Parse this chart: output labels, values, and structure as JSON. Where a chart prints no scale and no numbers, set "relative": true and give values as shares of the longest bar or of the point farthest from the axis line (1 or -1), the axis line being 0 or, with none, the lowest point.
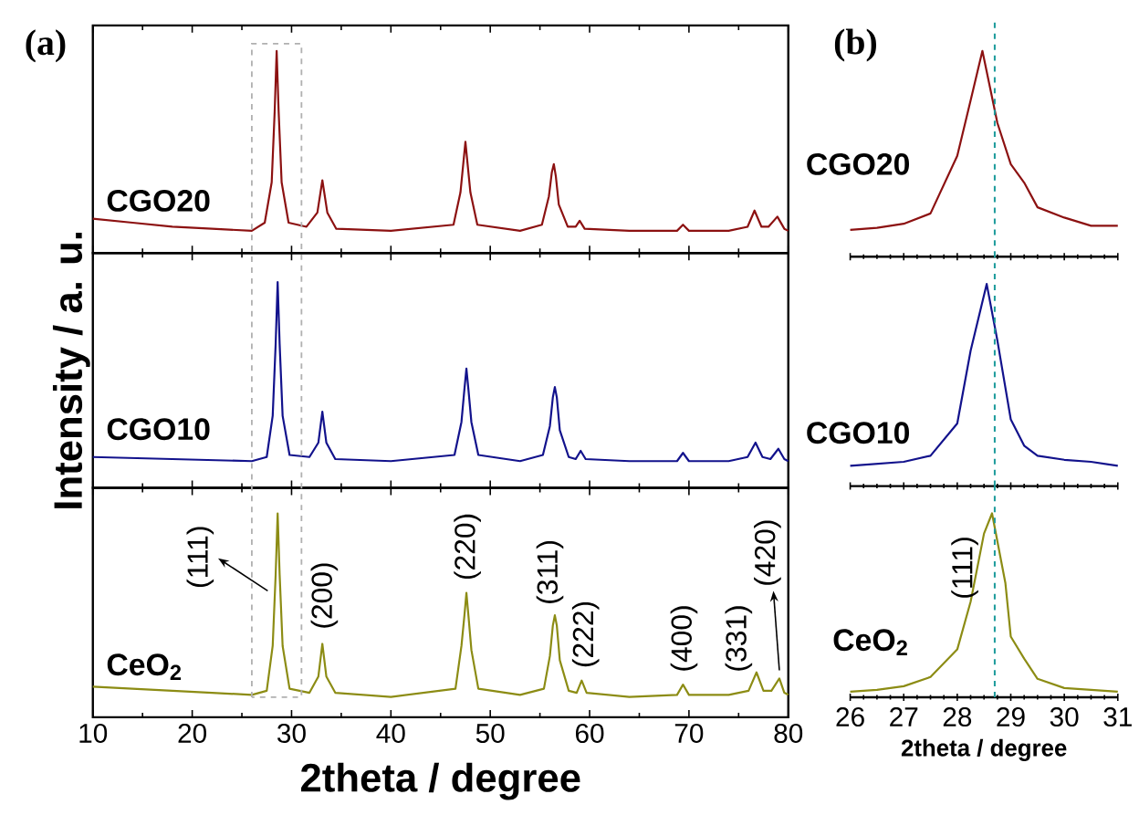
{
  "chart_data": [
    {
      "type": "line",
      "relative": true,
      "xlim": [
        10,
        80
      ],
      "xticks": [
        10,
        20,
        30,
        40,
        50,
        60,
        70,
        80
      ],
      "tick_labels": false,
      "annotations": [
        "(a)"
      ],
      "x": [
        10,
        14,
        18,
        22,
        26,
        27.3,
        28.0,
        28.3,
        28.5,
        28.7,
        29.0,
        29.7,
        31.5,
        32.6,
        33.1,
        33.6,
        34.5,
        40,
        46.3,
        47.0,
        47.3,
        47.5,
        47.7,
        48.0,
        48.7,
        53,
        55.2,
        55.9,
        56.2,
        56.4,
        56.6,
        56.9,
        57.8,
        58.6,
        59.0,
        59.5,
        64,
        68.8,
        69.4,
        70,
        74,
        75.9,
        76.6,
        77.3,
        78,
        78.9,
        79.6,
        80
      ],
      "series": [
        {
          "name": "CGO20",
          "color": "#8c1111",
          "values": [
            0.17,
            0.15,
            0.13,
            0.12,
            0.11,
            0.15,
            0.35,
            0.7,
            1.0,
            0.7,
            0.35,
            0.15,
            0.13,
            0.2,
            0.36,
            0.2,
            0.12,
            0.11,
            0.14,
            0.3,
            0.45,
            0.55,
            0.45,
            0.3,
            0.14,
            0.11,
            0.14,
            0.28,
            0.4,
            0.44,
            0.38,
            0.24,
            0.13,
            0.13,
            0.16,
            0.12,
            0.11,
            0.11,
            0.14,
            0.11,
            0.11,
            0.13,
            0.21,
            0.13,
            0.13,
            0.18,
            0.12,
            0.11
          ]
        }
      ]
    },
    {
      "type": "line",
      "relative": true,
      "xlim": [
        10,
        80
      ],
      "xticks": [
        10,
        20,
        30,
        40,
        50,
        60,
        70,
        80
      ],
      "tick_labels": false,
      "ylabel": "Intensity / a. u.",
      "x": [
        10,
        18,
        26,
        27.5,
        28.1,
        28.4,
        28.6,
        28.8,
        29.1,
        29.8,
        31.8,
        32.7,
        33.1,
        33.5,
        34.4,
        40,
        46.4,
        47.1,
        47.4,
        47.6,
        47.8,
        48.1,
        48.8,
        53,
        55.3,
        56.0,
        56.3,
        56.5,
        56.7,
        57.0,
        57.9,
        58.6,
        59.1,
        59.6,
        64,
        68.8,
        69.4,
        70,
        74,
        75.9,
        76.7,
        77.4,
        78.2,
        79.0,
        79.6,
        80
      ],
      "series": [
        {
          "name": "CGO10",
          "color": "#12128c",
          "values": [
            0.15,
            0.14,
            0.13,
            0.15,
            0.35,
            0.7,
            1.0,
            0.7,
            0.35,
            0.16,
            0.15,
            0.22,
            0.37,
            0.22,
            0.14,
            0.13,
            0.16,
            0.32,
            0.48,
            0.58,
            0.48,
            0.32,
            0.16,
            0.13,
            0.16,
            0.3,
            0.44,
            0.49,
            0.44,
            0.28,
            0.15,
            0.14,
            0.18,
            0.14,
            0.13,
            0.13,
            0.17,
            0.13,
            0.13,
            0.15,
            0.22,
            0.15,
            0.14,
            0.19,
            0.14,
            0.13
          ]
        }
      ]
    },
    {
      "type": "line",
      "relative": true,
      "xlim": [
        10,
        80
      ],
      "xticks": [
        10,
        20,
        30,
        40,
        50,
        60,
        70,
        80
      ],
      "tick_labels": "x",
      "xlabel": "2theta / degree",
      "annotations": [
        {
          "text": "(111)",
          "x": 28.6,
          "y": 1.0
        },
        {
          "text": "(200)",
          "x": 33.1,
          "y": 0.36
        },
        {
          "text": "(220)",
          "x": 47.6,
          "y": 0.61
        },
        {
          "text": "(311)",
          "x": 56.5,
          "y": 0.5
        },
        {
          "text": "(222)",
          "x": 59.2,
          "y": 0.18
        },
        {
          "text": "(400)",
          "x": 69.4,
          "y": 0.16
        },
        {
          "text": "(331)",
          "x": 76.8,
          "y": 0.22
        },
        {
          "text": "(420)",
          "x": 79.1,
          "y": 0.19
        }
      ],
      "x": [
        10,
        14,
        18,
        22,
        26,
        27.5,
        28.1,
        28.4,
        28.6,
        28.8,
        29.1,
        29.8,
        31.8,
        32.7,
        33.1,
        33.5,
        34.4,
        40,
        46.5,
        47.1,
        47.4,
        47.6,
        47.8,
        48.1,
        48.8,
        53,
        55.4,
        56.0,
        56.3,
        56.5,
        56.7,
        57.0,
        57.9,
        58.7,
        59.2,
        59.7,
        64,
        68.8,
        69.4,
        70,
        74,
        76.0,
        76.8,
        77.5,
        78.3,
        79.1,
        79.6,
        80
      ],
      "series": [
        {
          "name": "CeO$_{2}$",
          "color": "#8c8c14",
          "values": [
            0.15,
            0.14,
            0.13,
            0.12,
            0.11,
            0.13,
            0.35,
            0.7,
            1.0,
            0.7,
            0.35,
            0.14,
            0.12,
            0.2,
            0.36,
            0.2,
            0.12,
            0.1,
            0.14,
            0.35,
            0.5,
            0.61,
            0.5,
            0.33,
            0.14,
            0.11,
            0.14,
            0.3,
            0.45,
            0.5,
            0.45,
            0.28,
            0.13,
            0.12,
            0.18,
            0.12,
            0.1,
            0.11,
            0.16,
            0.11,
            0.11,
            0.13,
            0.22,
            0.13,
            0.13,
            0.19,
            0.12,
            0.11
          ]
        }
      ]
    },
    {
      "type": "line",
      "relative": true,
      "xlim": [
        26,
        31
      ],
      "xticks": [
        26,
        27,
        28,
        29,
        30,
        31
      ],
      "tick_labels": false,
      "annotations": [
        "(b)"
      ],
      "ref_lines": [
        {
          "axis": "x",
          "value": 28.7,
          "color": "#1a9a9a",
          "line_style": "dashed"
        }
      ],
      "x": [
        26,
        26.5,
        27,
        27.5,
        28,
        28.25,
        28.47,
        28.75,
        29,
        29.25,
        29.5,
        30,
        30.5,
        31
      ],
      "series": [
        {
          "name": "CGO20",
          "color": "#8c1111",
          "values": [
            0.13,
            0.14,
            0.16,
            0.21,
            0.49,
            0.76,
            1.0,
            0.65,
            0.45,
            0.36,
            0.24,
            0.19,
            0.15,
            0.15
          ]
        }
      ]
    },
    {
      "type": "line",
      "relative": true,
      "xlim": [
        26,
        31
      ],
      "xticks": [
        26,
        27,
        28,
        29,
        30,
        31
      ],
      "tick_labels": false,
      "ref_lines": [
        {
          "axis": "x",
          "value": 28.7,
          "color": "#1a9a9a",
          "line_style": "dashed"
        }
      ],
      "x": [
        26,
        26.5,
        27,
        27.5,
        28,
        28.25,
        28.55,
        28.75,
        29,
        29.25,
        29.5,
        30,
        30.5,
        31
      ],
      "series": [
        {
          "name": "CGO10",
          "color": "#12128c",
          "values": [
            0.1,
            0.11,
            0.12,
            0.15,
            0.31,
            0.67,
            1.0,
            0.72,
            0.33,
            0.2,
            0.15,
            0.13,
            0.12,
            0.1
          ]
        }
      ]
    },
    {
      "type": "line",
      "relative": true,
      "xlim": [
        26,
        31
      ],
      "xticks": [
        26,
        27,
        28,
        29,
        30,
        31
      ],
      "tick_labels": "x",
      "xlabel": "2theta / degree",
      "ref_lines": [
        {
          "axis": "x",
          "value": 28.7,
          "color": "#1a9a9a",
          "line_style": "dashed"
        }
      ],
      "annotations": [
        {
          "text": "(111)",
          "x": 28.65,
          "y": 1.0
        }
      ],
      "x": [
        26,
        26.5,
        27,
        27.5,
        28,
        28.25,
        28.5,
        28.65,
        28.9,
        29,
        29.25,
        29.5,
        30,
        30.5,
        31
      ],
      "series": [
        {
          "name": "CeO$_{2}$",
          "color": "#8c8c14",
          "values": [
            0.03,
            0.04,
            0.06,
            0.11,
            0.26,
            0.52,
            0.89,
            1.0,
            0.62,
            0.33,
            0.21,
            0.1,
            0.05,
            0.04,
            0.03
          ]
        }
      ]
    }
  ]
}
